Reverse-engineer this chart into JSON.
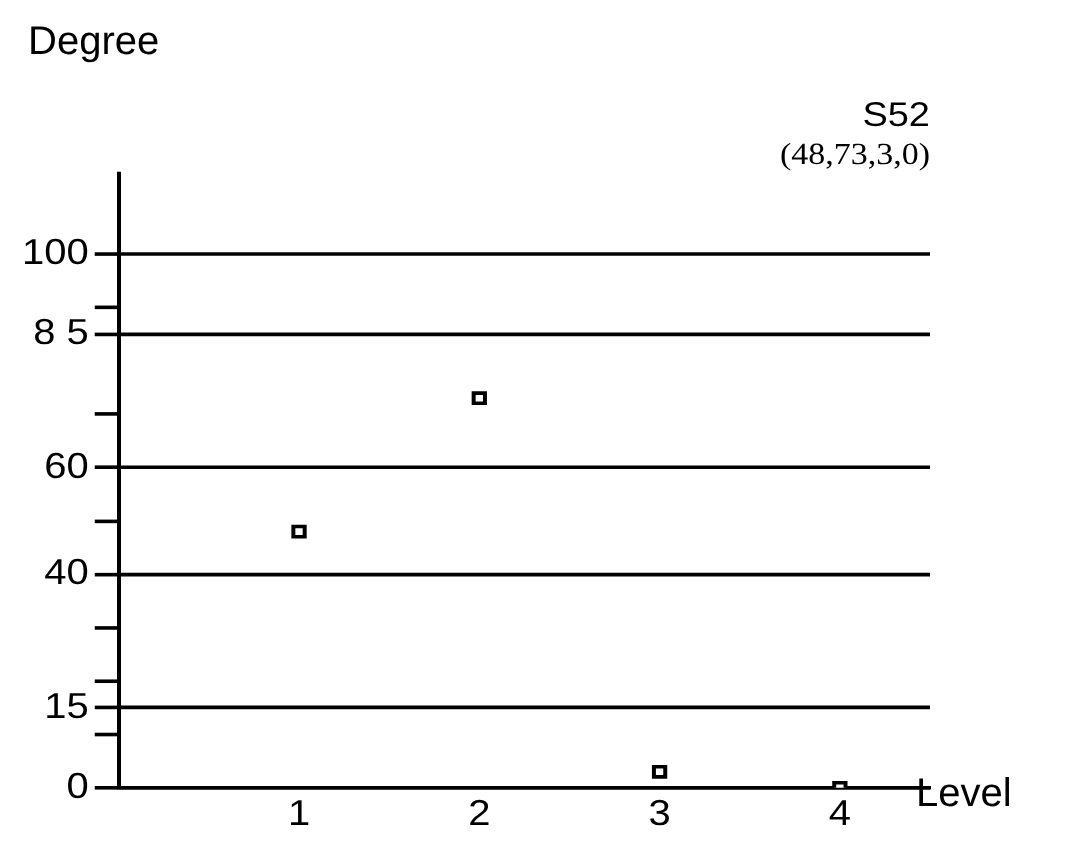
{
  "chart_data": {
    "type": "scatter",
    "title": "S52",
    "subtitle": "(48,73,3,0)",
    "xlabel": "Level",
    "ylabel": "Degree",
    "x": [
      1,
      2,
      3,
      4
    ],
    "values": [
      48,
      73,
      3,
      0
    ],
    "color": "#000000",
    "marker": "square",
    "xlim": [
      0,
      4.5
    ],
    "xticks": [
      1,
      2,
      3,
      4
    ],
    "ylim": [
      0,
      115
    ],
    "yticks": [
      0,
      {
        "value": 10,
        "label": null
      },
      15,
      {
        "value": 20,
        "label": null
      },
      {
        "value": 30,
        "label": null
      },
      40,
      {
        "value": 50,
        "label": null
      },
      60,
      {
        "value": 70,
        "label": null
      },
      {
        "value": 85,
        "label": "8 5"
      },
      {
        "value": 90,
        "label": null
      },
      100
    ],
    "grid": "y"
  }
}
